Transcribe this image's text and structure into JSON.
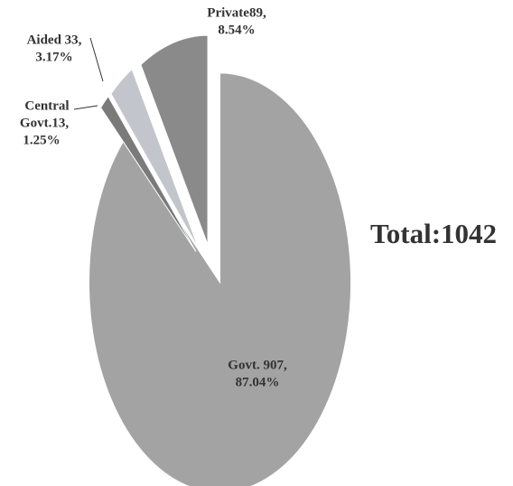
{
  "chart_data": {
    "type": "pie",
    "values": [
      907,
      13,
      33,
      89
    ],
    "value_labels": [
      [
        "Govt. 907,",
        "87.04%"
      ],
      [
        "Central",
        "Govt.13,",
        "1.25%"
      ],
      [
        "Aided 33,",
        "3.17%"
      ],
      [
        "Private89,",
        "8.54%"
      ]
    ],
    "colors": [
      "#a3a3a3",
      "#7a7a7a",
      "#c2c6cc",
      "#8a8a8a"
    ],
    "annotations": [
      "Total:1042"
    ]
  }
}
